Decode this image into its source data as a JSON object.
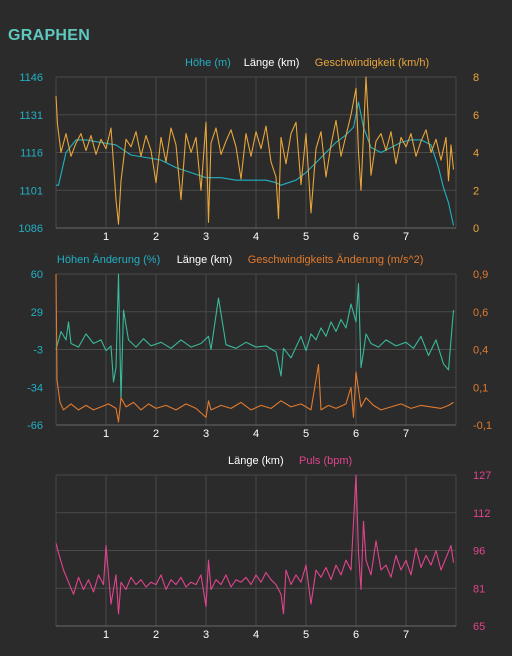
{
  "header": {
    "title": "GRAPHEN"
  },
  "colors": {
    "background": "#2b2b2b",
    "grid": "#4a4a4a",
    "axis_text": "#ffffff",
    "elevation": "#22b0c4",
    "speed": "#e8a53a",
    "elevation_change": "#3ab89a",
    "speed_change": "#e07a2e",
    "pulse": "#e0448e"
  },
  "chart_data": [
    {
      "type": "line",
      "title": "",
      "legend": [
        "Höhe (m)",
        "Länge (km)",
        "Geschwindigkeit (km/h)"
      ],
      "xlabel": "Länge (km)",
      "xlim": [
        0,
        8
      ],
      "xticks": [
        "1",
        "2",
        "3",
        "4",
        "5",
        "6",
        "7"
      ],
      "y_left": {
        "label": "Höhe (m)",
        "lim": [
          1086,
          1146
        ],
        "ticks": [
          "1146",
          "1131",
          "1116",
          "1101",
          "1086"
        ]
      },
      "y_right": {
        "label": "Geschwindigkeit (km/h)",
        "lim": [
          0,
          8
        ],
        "ticks": [
          "8",
          "6",
          "4",
          "2",
          "0"
        ]
      },
      "series": [
        {
          "name": "Höhe (m)",
          "axis": "left",
          "x": [
            0.0,
            0.05,
            0.2,
            0.4,
            0.6,
            0.9,
            1.2,
            1.5,
            1.8,
            2.1,
            2.4,
            2.7,
            3.0,
            3.3,
            3.6,
            3.9,
            4.2,
            4.4,
            4.5,
            4.8,
            5.0,
            5.2,
            5.4,
            5.6,
            5.8,
            5.95,
            6.05,
            6.15,
            6.3,
            6.5,
            6.7,
            6.9,
            7.1,
            7.3,
            7.5,
            7.65,
            7.75,
            7.85,
            7.95
          ],
          "y": [
            1103,
            1103,
            1116,
            1121,
            1121,
            1120,
            1119,
            1115,
            1114,
            1113,
            1110,
            1108,
            1106,
            1106,
            1105,
            1105,
            1105,
            1104,
            1103,
            1105,
            1108,
            1112,
            1116,
            1120,
            1123,
            1126,
            1136,
            1126,
            1118,
            1116,
            1118,
            1120,
            1121,
            1121,
            1119,
            1110,
            1102,
            1096,
            1087
          ]
        },
        {
          "name": "Geschwindigkeit (km/h)",
          "axis": "right",
          "x": [
            0.0,
            0.03,
            0.1,
            0.2,
            0.3,
            0.4,
            0.5,
            0.6,
            0.7,
            0.8,
            0.9,
            1.0,
            1.1,
            1.2,
            1.25,
            1.3,
            1.4,
            1.5,
            1.6,
            1.7,
            1.8,
            1.9,
            2.0,
            2.1,
            2.2,
            2.3,
            2.4,
            2.5,
            2.6,
            2.7,
            2.8,
            2.9,
            3.0,
            3.05,
            3.1,
            3.2,
            3.3,
            3.4,
            3.5,
            3.6,
            3.7,
            3.8,
            3.9,
            4.0,
            4.1,
            4.2,
            4.3,
            4.4,
            4.45,
            4.5,
            4.6,
            4.7,
            4.8,
            4.9,
            5.0,
            5.1,
            5.2,
            5.3,
            5.4,
            5.5,
            5.6,
            5.7,
            5.8,
            5.9,
            6.0,
            6.05,
            6.1,
            6.2,
            6.25,
            6.3,
            6.4,
            6.5,
            6.6,
            6.7,
            6.8,
            6.9,
            7.0,
            7.1,
            7.2,
            7.3,
            7.4,
            7.5,
            7.6,
            7.7,
            7.8,
            7.85,
            7.9,
            7.95
          ],
          "y": [
            7.0,
            5.5,
            4.0,
            5.0,
            3.8,
            4.5,
            5.0,
            4.1,
            4.9,
            3.9,
            4.7,
            4.2,
            5.3,
            1.5,
            0.2,
            2.5,
            4.7,
            4.3,
            5.1,
            3.8,
            4.9,
            4.1,
            2.4,
            4.8,
            3.5,
            5.3,
            4.4,
            1.5,
            5.0,
            4.0,
            4.8,
            2.0,
            5.6,
            0.3,
            4.5,
            5.3,
            3.9,
            4.6,
            5.2,
            4.3,
            2.6,
            5.0,
            3.8,
            5.1,
            4.2,
            5.4,
            3.5,
            2.7,
            0.5,
            4.8,
            3.4,
            5.0,
            5.6,
            2.3,
            5.0,
            0.8,
            4.2,
            5.1,
            2.7,
            4.4,
            5.7,
            3.8,
            4.9,
            6.0,
            7.4,
            4.0,
            2.0,
            8.0,
            5.5,
            2.8,
            4.6,
            5.0,
            4.1,
            5.1,
            3.4,
            4.8,
            4.3,
            5.0,
            3.8,
            4.6,
            5.2,
            4.0,
            4.7,
            3.6,
            4.8,
            2.5,
            4.4,
            3.1
          ]
        }
      ]
    },
    {
      "type": "line",
      "title": "",
      "legend": [
        "Höhen Änderung (%)",
        "Länge (km)",
        "Geschwindigkeits Änderung (m/s^2)"
      ],
      "xlabel": "Länge (km)",
      "xlim": [
        0,
        8
      ],
      "xticks": [
        "1",
        "2",
        "3",
        "4",
        "5",
        "6",
        "7"
      ],
      "y_left": {
        "label": "Höhen Änderung (%)",
        "lim": [
          -66,
          60
        ],
        "ticks": [
          "60",
          "29",
          "-3",
          "-34",
          "-66"
        ]
      },
      "y_right": {
        "label": "Geschwindigkeits Änderung (m/s^2)",
        "lim": [
          -0.1,
          0.9
        ],
        "ticks": [
          "0,9",
          "0,6",
          "0,4",
          "0,1",
          "-0,1"
        ]
      },
      "series": [
        {
          "name": "Höhen Änderung (%)",
          "axis": "left",
          "x": [
            0.0,
            0.1,
            0.2,
            0.25,
            0.3,
            0.45,
            0.6,
            0.75,
            0.9,
            1.0,
            1.1,
            1.15,
            1.2,
            1.25,
            1.3,
            1.35,
            1.45,
            1.6,
            1.75,
            1.9,
            2.1,
            2.3,
            2.5,
            2.7,
            2.9,
            3.05,
            3.1,
            3.25,
            3.4,
            3.6,
            3.8,
            4.0,
            4.2,
            4.4,
            4.5,
            4.55,
            4.7,
            4.9,
            5.0,
            5.1,
            5.2,
            5.3,
            5.4,
            5.5,
            5.6,
            5.7,
            5.8,
            5.9,
            6.0,
            6.05,
            6.1,
            6.15,
            6.2,
            6.3,
            6.45,
            6.6,
            6.8,
            7.0,
            7.15,
            7.3,
            7.45,
            7.6,
            7.75,
            7.85,
            7.95
          ],
          "y": [
            -3,
            12,
            5,
            20,
            2,
            -1,
            10,
            2,
            5,
            -4,
            0,
            -30,
            -18,
            60,
            -45,
            30,
            5,
            -1,
            6,
            0,
            3,
            -2,
            5,
            -1,
            2,
            8,
            -3,
            40,
            1,
            -2,
            3,
            -1,
            0,
            -5,
            -25,
            -2,
            -10,
            8,
            -4,
            10,
            5,
            15,
            8,
            20,
            12,
            22,
            15,
            35,
            20,
            52,
            -18,
            -5,
            10,
            2,
            -1,
            5,
            0,
            3,
            -2,
            8,
            -8,
            5,
            -15,
            -20,
            30
          ]
        },
        {
          "name": "Geschwindigkeits Änderung (m/s^2)",
          "axis": "right",
          "x": [
            0.0,
            0.02,
            0.08,
            0.15,
            0.3,
            0.45,
            0.6,
            0.75,
            0.9,
            1.05,
            1.2,
            1.25,
            1.3,
            1.4,
            1.55,
            1.7,
            1.85,
            2.0,
            2.2,
            2.4,
            2.6,
            2.8,
            3.0,
            3.05,
            3.1,
            3.3,
            3.5,
            3.7,
            3.9,
            4.1,
            4.3,
            4.5,
            4.7,
            4.9,
            5.1,
            5.25,
            5.3,
            5.45,
            5.6,
            5.8,
            5.9,
            5.95,
            6.0,
            6.1,
            6.2,
            6.35,
            6.5,
            6.7,
            6.9,
            7.1,
            7.3,
            7.5,
            7.7,
            7.85,
            7.95
          ],
          "y": [
            0.9,
            0.2,
            0.05,
            0.0,
            0.04,
            0.0,
            0.03,
            0.0,
            0.02,
            0.04,
            0.01,
            -0.08,
            0.08,
            0.02,
            0.05,
            0.0,
            0.04,
            0.01,
            0.03,
            0.0,
            0.04,
            0.01,
            -0.05,
            0.06,
            0.0,
            0.03,
            0.01,
            0.05,
            0.0,
            0.03,
            0.01,
            0.06,
            0.02,
            0.04,
            0.0,
            0.3,
            0.0,
            0.03,
            0.01,
            0.04,
            0.15,
            -0.05,
            0.25,
            0.02,
            0.08,
            0.03,
            0.0,
            0.02,
            0.04,
            0.01,
            0.03,
            0.02,
            0.01,
            0.03,
            0.05
          ]
        }
      ]
    },
    {
      "type": "line",
      "title": "",
      "legend": [
        "Länge (km)",
        "Puls (bpm)"
      ],
      "xlabel": "Länge (km)",
      "xlim": [
        0,
        8
      ],
      "xticks": [
        "1",
        "2",
        "3",
        "4",
        "5",
        "6",
        "7"
      ],
      "y_right": {
        "label": "Puls (bpm)",
        "lim": [
          65,
          127
        ],
        "ticks": [
          "127",
          "112",
          "96",
          "81",
          "65"
        ]
      },
      "series": [
        {
          "name": "Puls (bpm)",
          "axis": "right",
          "x": [
            0.0,
            0.05,
            0.15,
            0.25,
            0.35,
            0.45,
            0.55,
            0.65,
            0.75,
            0.85,
            0.95,
            1.0,
            1.1,
            1.2,
            1.25,
            1.3,
            1.4,
            1.5,
            1.6,
            1.7,
            1.8,
            1.9,
            2.0,
            2.1,
            2.2,
            2.3,
            2.4,
            2.5,
            2.6,
            2.7,
            2.8,
            2.9,
            3.0,
            3.05,
            3.1,
            3.2,
            3.3,
            3.4,
            3.5,
            3.6,
            3.7,
            3.8,
            3.9,
            4.0,
            4.1,
            4.2,
            4.3,
            4.4,
            4.5,
            4.55,
            4.6,
            4.7,
            4.8,
            4.9,
            5.0,
            5.1,
            5.2,
            5.3,
            5.4,
            5.5,
            5.6,
            5.7,
            5.8,
            5.9,
            6.0,
            6.05,
            6.1,
            6.15,
            6.2,
            6.3,
            6.4,
            6.5,
            6.6,
            6.7,
            6.8,
            6.9,
            7.0,
            7.1,
            7.2,
            7.3,
            7.4,
            7.5,
            7.6,
            7.7,
            7.8,
            7.9,
            7.95
          ],
          "y": [
            99,
            95,
            88,
            83,
            78,
            85,
            80,
            84,
            79,
            86,
            82,
            98,
            74,
            86,
            70,
            83,
            80,
            85,
            82,
            84,
            81,
            83,
            82,
            86,
            80,
            84,
            82,
            85,
            81,
            83,
            82,
            86,
            73,
            92,
            80,
            84,
            82,
            86,
            81,
            84,
            83,
            85,
            82,
            86,
            83,
            87,
            84,
            82,
            78,
            70,
            88,
            82,
            86,
            83,
            90,
            74,
            88,
            85,
            89,
            84,
            90,
            86,
            92,
            88,
            127,
            95,
            80,
            108,
            92,
            86,
            100,
            88,
            90,
            85,
            94,
            88,
            92,
            86,
            97,
            89,
            94,
            90,
            96,
            88,
            93,
            98,
            91
          ]
        }
      ]
    }
  ]
}
